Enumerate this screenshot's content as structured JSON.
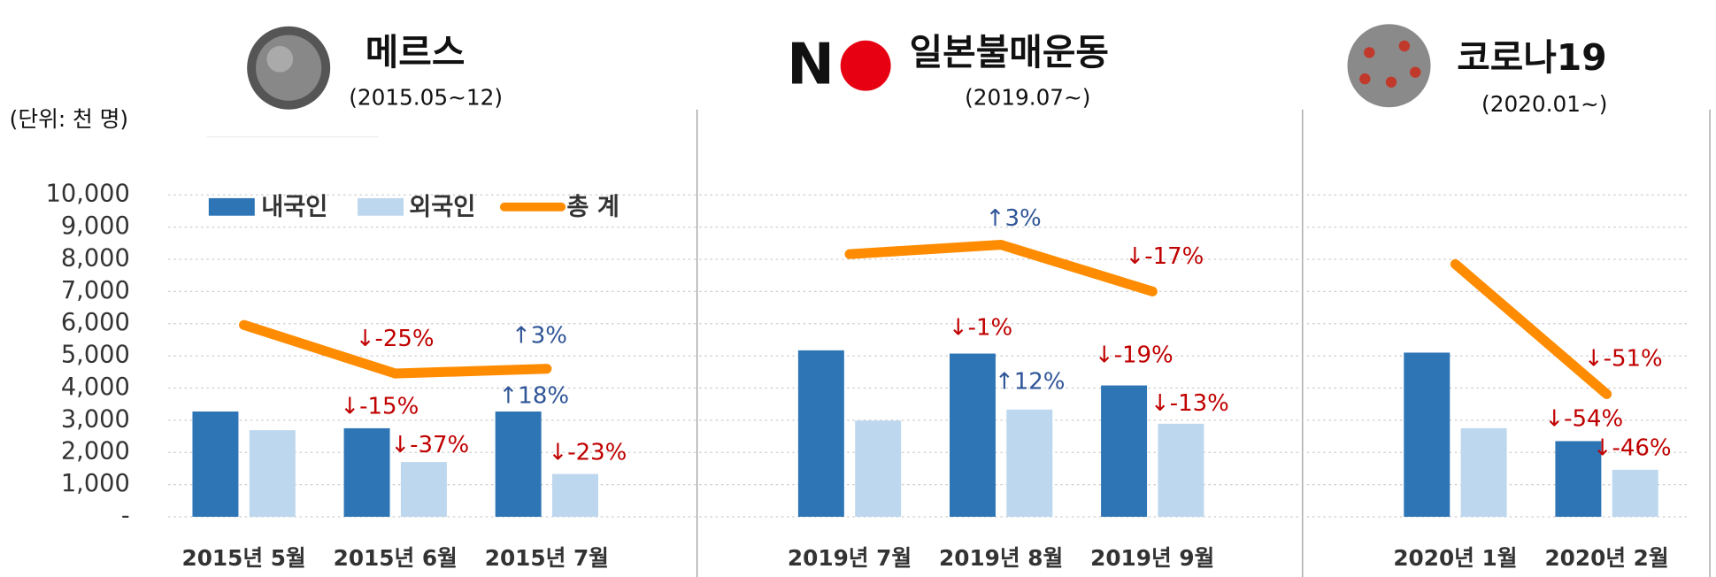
{
  "chart_data": {
    "type": "bar",
    "unit_label": "(단위: 천 명)",
    "groups": [
      {
        "title": "메르스",
        "subtitle": "(2015.05~12)"
      },
      {
        "title_letter": "N",
        "title": "일본불매운동",
        "subtitle": "(2019.07~)"
      },
      {
        "title": "코로나19",
        "subtitle": "(2020.01~)"
      }
    ],
    "categories": [
      "2015년 5월",
      "2015년 6월",
      "2015년 7월",
      null,
      "2019년 7월",
      "2019년 8월",
      "2019년 9월",
      null,
      "2020년 1월",
      "2020년 2월"
    ],
    "series": [
      {
        "name": "내국인",
        "color": "#2e75b6",
        "type": "bar",
        "values": [
          3270,
          2750,
          3270,
          null,
          5170,
          5070,
          4080,
          null,
          5100,
          2350
        ]
      },
      {
        "name": "외국인",
        "color": "#bdd7ee",
        "type": "bar",
        "values": [
          2690,
          1700,
          1330,
          null,
          2990,
          3330,
          2890,
          null,
          2750,
          1460
        ]
      },
      {
        "name": "총 계",
        "color": "#ff8c00",
        "type": "line",
        "values": [
          5960,
          4450,
          4600,
          null,
          8160,
          8450,
          7000,
          null,
          7850,
          3810
        ]
      }
    ],
    "ylim": [
      0,
      10000
    ],
    "yticks": [
      {
        "value": 0,
        "label": "-"
      },
      {
        "value": 1000,
        "label": "1,000"
      },
      {
        "value": 2000,
        "label": "2,000"
      },
      {
        "value": 3000,
        "label": "3,000"
      },
      {
        "value": 4000,
        "label": "4,000"
      },
      {
        "value": 5000,
        "label": "5,000"
      },
      {
        "value": 6000,
        "label": "6,000"
      },
      {
        "value": 7000,
        "label": "7,000"
      },
      {
        "value": 8000,
        "label": "8,000"
      },
      {
        "value": 9000,
        "label": "9,000"
      },
      {
        "value": 10000,
        "label": "10,000"
      }
    ],
    "grid": true,
    "legend": "top-left",
    "annotations": [
      {
        "text": "↓-25%",
        "color": "#c00000"
      },
      {
        "text": "↑3%",
        "color": "#2f5597"
      },
      {
        "text": "↓-15%",
        "color": "#c00000"
      },
      {
        "text": "↓-37%",
        "color": "#c00000"
      },
      {
        "text": "↑18%",
        "color": "#2f5597"
      },
      {
        "text": "↓-23%",
        "color": "#c00000"
      },
      {
        "text": "↑3%",
        "color": "#2f5597"
      },
      {
        "text": "↓-17%",
        "color": "#c00000"
      },
      {
        "text": "↓-1%",
        "color": "#c00000"
      },
      {
        "text": "↑12%",
        "color": "#2f5597"
      },
      {
        "text": "↓-19%",
        "color": "#c00000"
      },
      {
        "text": "↓-13%",
        "color": "#c00000"
      },
      {
        "text": "↓-51%",
        "color": "#c00000"
      },
      {
        "text": "↓-54%",
        "color": "#c00000"
      },
      {
        "text": "↓-46%",
        "color": "#c00000"
      }
    ]
  }
}
